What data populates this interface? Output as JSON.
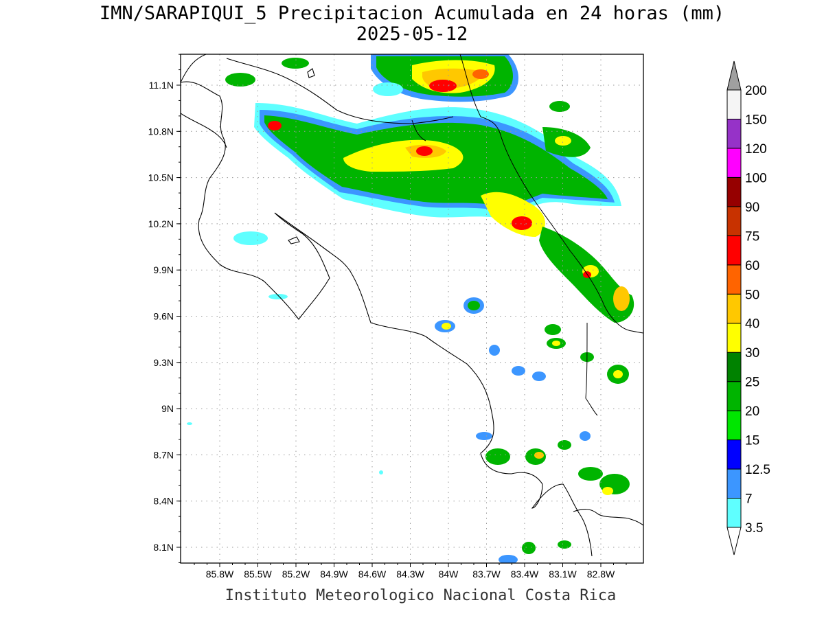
{
  "title": {
    "line1": "IMN/SARAPIQUI_5 Precipitacion Acumulada en 24 horas (mm)",
    "line2": "2025-05-12"
  },
  "footer": "Instituto Meteorologico Nacional Costa Rica",
  "axes": {
    "longitude_ticks": [
      "85.8W",
      "85.5W",
      "85.2W",
      "84.9W",
      "84.6W",
      "84.3W",
      "84W",
      "83.7W",
      "83.4W",
      "83.1W",
      "82.8W"
    ],
    "latitude_ticks": [
      "11.1N",
      "10.8N",
      "10.5N",
      "10.2N",
      "9.9N",
      "9.6N",
      "9.3N",
      "9N",
      "8.7N",
      "8.4N",
      "8.1N"
    ],
    "lon_values": [
      -85.8,
      -85.5,
      -85.2,
      -84.9,
      -84.6,
      -84.3,
      -84.0,
      -83.7,
      -83.4,
      -83.1,
      -82.8
    ],
    "lat_values": [
      11.1,
      10.8,
      10.5,
      10.2,
      9.9,
      9.6,
      9.3,
      9.0,
      8.7,
      8.4,
      8.1
    ],
    "lon_range": [
      -86.0,
      -82.6
    ],
    "lat_range": [
      8.0,
      11.3
    ],
    "grid": "dotted"
  },
  "colorbar": {
    "labels": [
      "3.5",
      "7",
      "12.5",
      "15",
      "20",
      "25",
      "30",
      "40",
      "50",
      "60",
      "75",
      "90",
      "100",
      "120",
      "150",
      "200"
    ],
    "colors": [
      "#ffffff",
      "#5fffff",
      "#3c96ff",
      "#0000ff",
      "#00e600",
      "#00b400",
      "#008200",
      "#ffff00",
      "#ffc800",
      "#ff6400",
      "#ff0000",
      "#c83200",
      "#960000",
      "#ff00ff",
      "#9632c8",
      "#f5f5f5",
      "#a0a0a0"
    ]
  },
  "precip_colors": {
    "level_3_5": "#5fffff",
    "level_7": "#3c96ff",
    "level_12_5": "#0000ff",
    "level_15": "#00e600",
    "level_20": "#00b400",
    "level_25": "#008200",
    "level_30": "#ffff00",
    "level_40": "#ffc800",
    "level_50": "#ff6400",
    "level_60": "#ff0000"
  }
}
